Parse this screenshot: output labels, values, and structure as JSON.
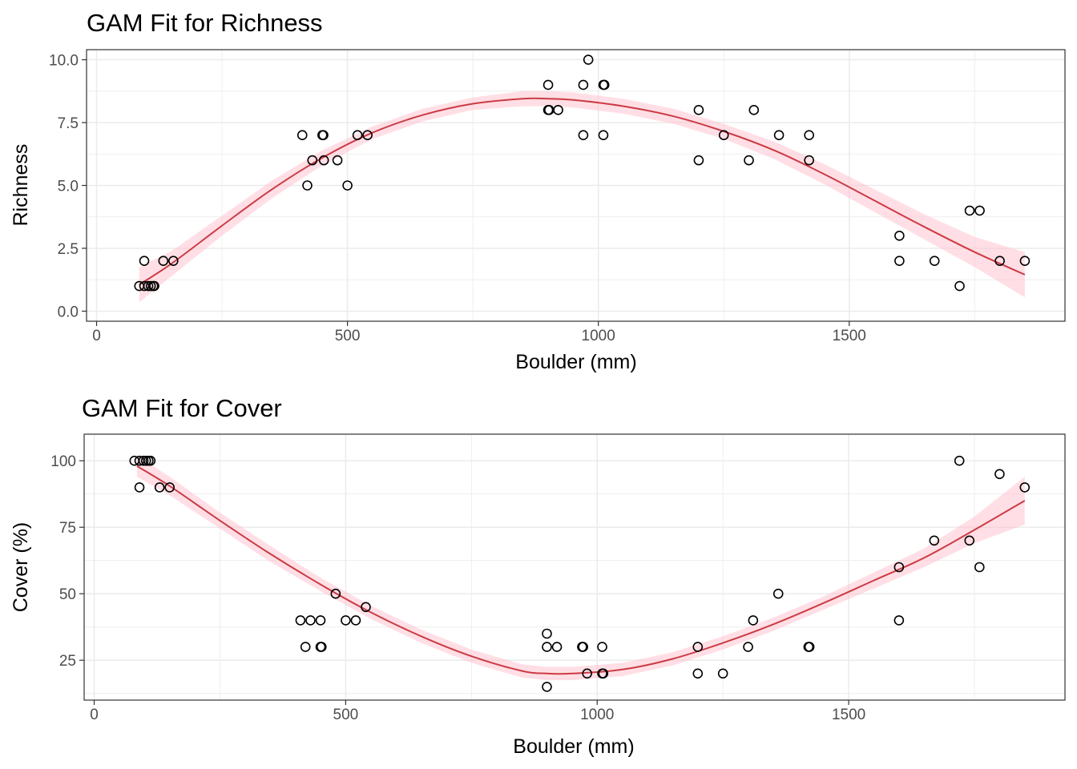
{
  "chart_data": [
    {
      "type": "scatter",
      "title": "GAM Fit for Richness",
      "xlabel": "Boulder (mm)",
      "ylabel": "Richness",
      "xlim": [
        -20,
        1930
      ],
      "ylim": [
        -0.4,
        10.4
      ],
      "xticks": [
        0,
        500,
        1000,
        1500
      ],
      "xtick_labels": [
        "0",
        "500",
        "1000",
        "1500"
      ],
      "xminor": [
        250,
        750,
        1250,
        1750
      ],
      "yticks": [
        0,
        2.5,
        5,
        7.5,
        10
      ],
      "ytick_labels": [
        "0.0",
        "2.5",
        "5.0",
        "7.5",
        "10.0"
      ],
      "yminor": [
        1.25,
        3.75,
        6.25,
        8.75
      ],
      "grid": true,
      "points": [
        {
          "x": 85,
          "y": 1
        },
        {
          "x": 95,
          "y": 2
        },
        {
          "x": 95,
          "y": 1
        },
        {
          "x": 103,
          "y": 1
        },
        {
          "x": 108,
          "y": 1
        },
        {
          "x": 113,
          "y": 1
        },
        {
          "x": 115,
          "y": 1
        },
        {
          "x": 133,
          "y": 2
        },
        {
          "x": 153,
          "y": 2
        },
        {
          "x": 410,
          "y": 7
        },
        {
          "x": 420,
          "y": 5
        },
        {
          "x": 430,
          "y": 6
        },
        {
          "x": 450,
          "y": 7
        },
        {
          "x": 452,
          "y": 7
        },
        {
          "x": 453,
          "y": 6
        },
        {
          "x": 480,
          "y": 6
        },
        {
          "x": 500,
          "y": 5
        },
        {
          "x": 520,
          "y": 7
        },
        {
          "x": 540,
          "y": 7
        },
        {
          "x": 900,
          "y": 9
        },
        {
          "x": 900,
          "y": 8
        },
        {
          "x": 902,
          "y": 8
        },
        {
          "x": 920,
          "y": 8
        },
        {
          "x": 970,
          "y": 9
        },
        {
          "x": 970,
          "y": 7
        },
        {
          "x": 980,
          "y": 10
        },
        {
          "x": 1010,
          "y": 9
        },
        {
          "x": 1012,
          "y": 9
        },
        {
          "x": 1010,
          "y": 7
        },
        {
          "x": 1200,
          "y": 8
        },
        {
          "x": 1200,
          "y": 6
        },
        {
          "x": 1250,
          "y": 7
        },
        {
          "x": 1300,
          "y": 6
        },
        {
          "x": 1310,
          "y": 8
        },
        {
          "x": 1360,
          "y": 7
        },
        {
          "x": 1420,
          "y": 7
        },
        {
          "x": 1420,
          "y": 6
        },
        {
          "x": 1600,
          "y": 3
        },
        {
          "x": 1600,
          "y": 2
        },
        {
          "x": 1670,
          "y": 2
        },
        {
          "x": 1720,
          "y": 1
        },
        {
          "x": 1740,
          "y": 4
        },
        {
          "x": 1760,
          "y": 4
        },
        {
          "x": 1800,
          "y": 2
        },
        {
          "x": 1850,
          "y": 2
        }
      ],
      "fit": {
        "x": [
          85,
          150,
          250,
          350,
          450,
          550,
          650,
          750,
          850,
          900,
          950,
          1050,
          1150,
          1250,
          1350,
          1450,
          1550,
          1650,
          1750,
          1850
        ],
        "y": [
          1.05,
          1.9,
          3.4,
          4.85,
          6.1,
          7.1,
          7.8,
          8.25,
          8.45,
          8.45,
          8.4,
          8.15,
          7.75,
          7.15,
          6.4,
          5.45,
          4.4,
          3.35,
          2.35,
          1.45
        ],
        "lower": [
          0.35,
          1.4,
          3.0,
          4.5,
          5.8,
          6.85,
          7.55,
          8.0,
          8.15,
          8.15,
          8.1,
          7.85,
          7.45,
          6.85,
          6.05,
          5.05,
          3.95,
          2.85,
          1.75,
          0.55
        ],
        "upper": [
          1.75,
          2.4,
          3.8,
          5.2,
          6.4,
          7.35,
          8.05,
          8.5,
          8.75,
          8.75,
          8.7,
          8.45,
          8.05,
          7.45,
          6.75,
          5.85,
          4.85,
          3.85,
          2.95,
          2.35
        ]
      }
    },
    {
      "type": "scatter",
      "title": "GAM Fit for Cover",
      "xlabel": "Boulder (mm)",
      "ylabel": "Cover (%)",
      "xlim": [
        -20,
        1930
      ],
      "ylim": [
        10,
        110
      ],
      "xticks": [
        0,
        500,
        1000,
        1500
      ],
      "xtick_labels": [
        "0",
        "500",
        "1000",
        "1500"
      ],
      "xminor": [
        250,
        750,
        1250,
        1750
      ],
      "yticks": [
        25,
        50,
        75,
        100
      ],
      "ytick_labels": [
        "25",
        "50",
        "75",
        "100"
      ],
      "yminor": [
        12.5,
        37.5,
        62.5,
        87.5
      ],
      "grid": true,
      "points": [
        {
          "x": 80,
          "y": 100
        },
        {
          "x": 90,
          "y": 100
        },
        {
          "x": 90,
          "y": 90
        },
        {
          "x": 98,
          "y": 100
        },
        {
          "x": 103,
          "y": 100
        },
        {
          "x": 108,
          "y": 100
        },
        {
          "x": 112,
          "y": 100
        },
        {
          "x": 130,
          "y": 90
        },
        {
          "x": 150,
          "y": 90
        },
        {
          "x": 410,
          "y": 40
        },
        {
          "x": 420,
          "y": 30
        },
        {
          "x": 430,
          "y": 40
        },
        {
          "x": 450,
          "y": 40
        },
        {
          "x": 450,
          "y": 30
        },
        {
          "x": 452,
          "y": 30
        },
        {
          "x": 480,
          "y": 50
        },
        {
          "x": 500,
          "y": 40
        },
        {
          "x": 520,
          "y": 40
        },
        {
          "x": 540,
          "y": 45
        },
        {
          "x": 900,
          "y": 35
        },
        {
          "x": 900,
          "y": 30
        },
        {
          "x": 900,
          "y": 15
        },
        {
          "x": 920,
          "y": 30
        },
        {
          "x": 970,
          "y": 30
        },
        {
          "x": 972,
          "y": 30
        },
        {
          "x": 980,
          "y": 20
        },
        {
          "x": 1010,
          "y": 30
        },
        {
          "x": 1010,
          "y": 20
        },
        {
          "x": 1012,
          "y": 20
        },
        {
          "x": 1200,
          "y": 30
        },
        {
          "x": 1200,
          "y": 20
        },
        {
          "x": 1250,
          "y": 20
        },
        {
          "x": 1300,
          "y": 30
        },
        {
          "x": 1310,
          "y": 40
        },
        {
          "x": 1360,
          "y": 50
        },
        {
          "x": 1420,
          "y": 30
        },
        {
          "x": 1422,
          "y": 30
        },
        {
          "x": 1600,
          "y": 60
        },
        {
          "x": 1600,
          "y": 40
        },
        {
          "x": 1670,
          "y": 70
        },
        {
          "x": 1720,
          "y": 100
        },
        {
          "x": 1740,
          "y": 70
        },
        {
          "x": 1760,
          "y": 60
        },
        {
          "x": 1800,
          "y": 95
        },
        {
          "x": 1850,
          "y": 90
        }
      ],
      "fit": {
        "x": [
          85,
          150,
          250,
          350,
          450,
          550,
          650,
          750,
          850,
          900,
          950,
          1050,
          1150,
          1250,
          1350,
          1450,
          1550,
          1650,
          1750,
          1850
        ],
        "y": [
          98,
          90.5,
          77.5,
          65,
          53.5,
          43,
          34,
          26.5,
          21,
          20,
          20,
          21.5,
          25.5,
          31.5,
          38.5,
          46.5,
          55,
          63.5,
          74,
          85
        ],
        "lower": [
          94,
          87,
          74.5,
          62,
          51,
          40.5,
          31.5,
          24,
          18.5,
          17.5,
          17.5,
          19,
          23,
          29,
          36,
          44,
          52,
          60,
          69,
          76
        ],
        "upper": [
          102,
          94,
          80.5,
          68,
          56,
          45.5,
          36.5,
          29,
          23.5,
          22.5,
          22.5,
          24,
          28,
          34,
          41,
          49,
          58,
          67,
          79,
          94
        ]
      }
    }
  ]
}
